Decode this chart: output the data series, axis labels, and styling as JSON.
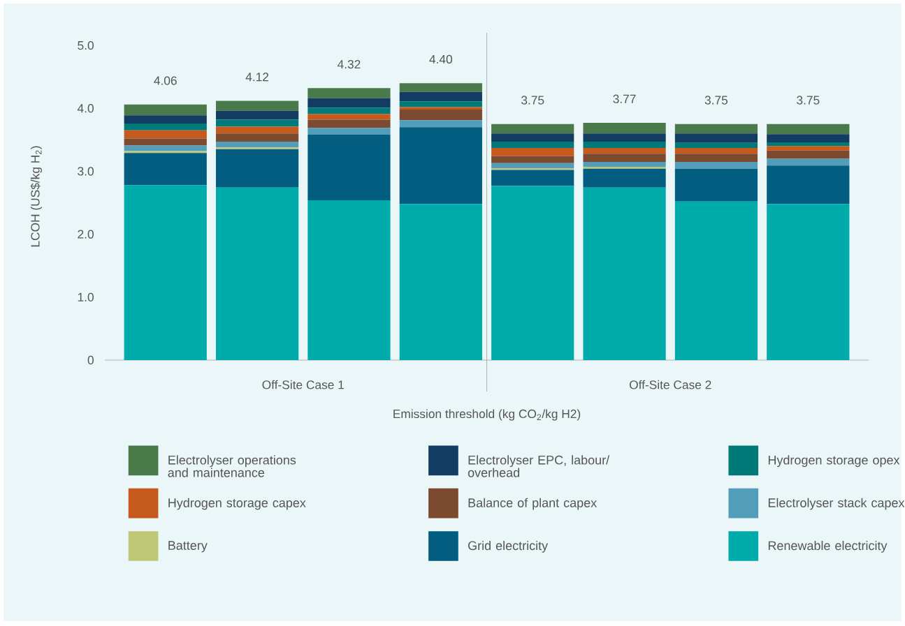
{
  "chart_data": {
    "type": "bar",
    "stacked": true,
    "categories": [
      null,
      null,
      null,
      null,
      null,
      null,
      null,
      null
    ],
    "ylabel": "LCOH (US$/kg H$_{2}$)",
    "xlabel": "Emission threshold (kg CO$_{2}$/kg H2)",
    "annotations": [
      "Off-Site Case 1",
      "Off-Site Case 2"
    ],
    "ylim": [
      0,
      5.2
    ],
    "yticks": [
      0,
      {
        "value": 1,
        "label": "1.0"
      },
      {
        "value": 2,
        "label": "2.0"
      },
      {
        "value": 3,
        "label": "3.0"
      },
      {
        "value": 4,
        "label": "4.0"
      },
      {
        "value": 5,
        "label": "5.0"
      }
    ],
    "legend": "bottom",
    "totals": [
      "4.06",
      "4.12",
      "4.32",
      "4.40",
      "3.75",
      "3.77",
      "3.75",
      "3.75"
    ],
    "series": [
      {
        "name": "Renewable electricity",
        "color": "#00abac",
        "values": [
          2.78,
          2.74,
          2.54,
          2.48,
          2.77,
          2.74,
          2.52,
          2.48
        ]
      },
      {
        "name": "Grid electricity",
        "color": "#035d80",
        "values": [
          0.51,
          0.61,
          1.04,
          1.22,
          0.25,
          0.3,
          0.52,
          0.61
        ]
      },
      {
        "name": "Battery",
        "color": "#bfc877",
        "values": [
          0.03,
          0.03,
          0,
          0,
          0.03,
          0.03,
          0,
          0
        ]
      },
      {
        "name": "Electrolyser stack capex",
        "color": "#529dba",
        "values": [
          0.09,
          0.09,
          0.11,
          0.11,
          0.08,
          0.08,
          0.11,
          0.11
        ]
      },
      {
        "name": "Balance of plant capex",
        "color": "#7b4a2f",
        "values": [
          0.11,
          0.13,
          0.13,
          0.17,
          0.11,
          0.13,
          0.13,
          0.13
        ]
      },
      {
        "name": "Hydrogen storage capex",
        "color": "#c55a1c",
        "values": [
          0.13,
          0.11,
          0.09,
          0.04,
          0.13,
          0.09,
          0.09,
          0.07
        ]
      },
      {
        "name": "Hydrogen storage opex",
        "color": "#007a78",
        "values": [
          0.11,
          0.11,
          0.1,
          0.09,
          0.1,
          0.1,
          0.08,
          0.06
        ]
      },
      {
        "name": "Electrolyser EPC, labour/ overhead",
        "color": "#133c63",
        "values": [
          0.13,
          0.14,
          0.15,
          0.15,
          0.13,
          0.13,
          0.15,
          0.13
        ]
      },
      {
        "name": "Electrolyser operations and maintenance",
        "color": "#4a7a4a",
        "values": [
          0.17,
          0.16,
          0.16,
          0.14,
          0.15,
          0.17,
          0.15,
          0.16
        ]
      }
    ]
  }
}
